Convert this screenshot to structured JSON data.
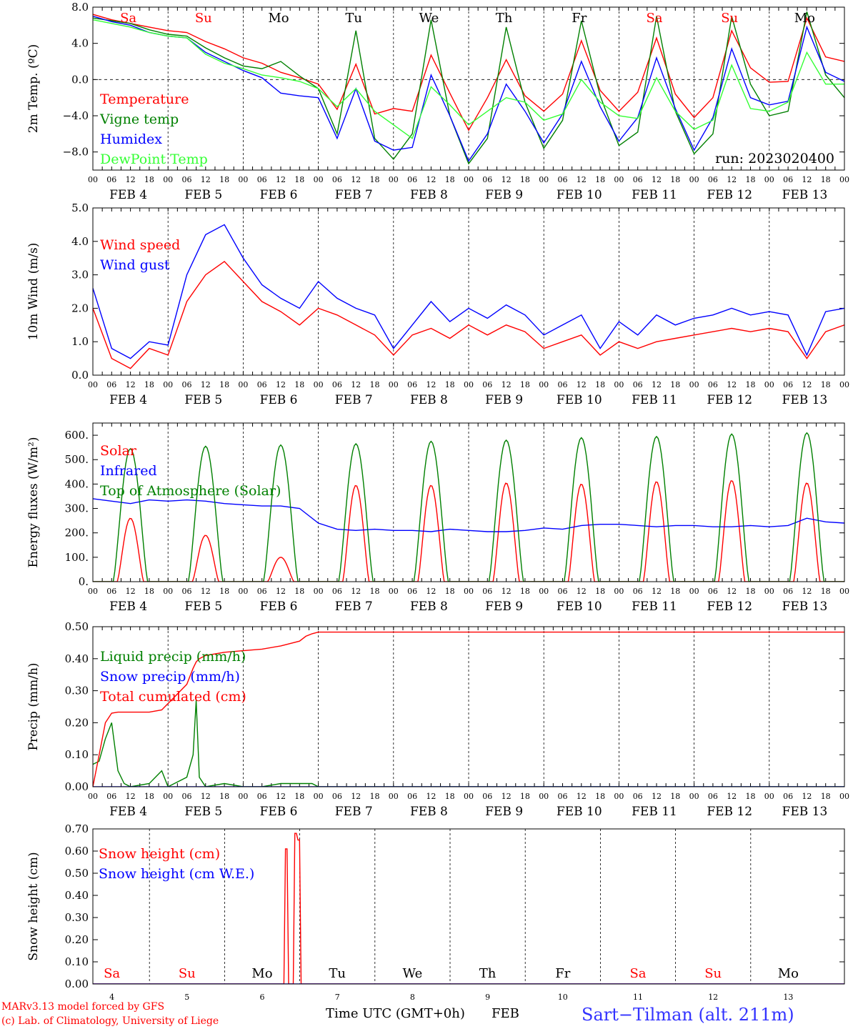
{
  "x_axis": {
    "hour_labels": [
      "00",
      "06",
      "12",
      "18"
    ],
    "final_label": "00",
    "date_labels": [
      "FEB  4",
      "FEB  5",
      "FEB  6",
      "FEB  7",
      "FEB  8",
      "FEB  9",
      "FEB 10",
      "FEB 11",
      "FEB 12",
      "FEB 13"
    ],
    "day_numbers": [
      "4",
      "5",
      "6",
      "7",
      "8",
      "9",
      "10",
      "11",
      "12",
      "13"
    ],
    "weekdays": [
      "Sa",
      "Su",
      "Mo",
      "Tu",
      "We",
      "Th",
      "Fr",
      "Sa",
      "Su",
      "Mo"
    ],
    "weekday_colors": [
      "#ff0000",
      "#ff0000",
      "#000000",
      "#000000",
      "#000000",
      "#000000",
      "#000000",
      "#ff0000",
      "#ff0000",
      "#000000"
    ],
    "title": "Time UTC (GMT+0h)",
    "month": "FEB"
  },
  "footer": {
    "credit_line1": "MARv3.13 model forced by GFS",
    "credit_line2": "(c) Lab. of Climatology, University of Liege",
    "station": "Sart−Tilman (alt. 211m)",
    "credit_color": "#ff0000",
    "station_color": "#3333ff"
  },
  "chart_data": [
    {
      "type": "line",
      "ylabel": "2m Temp. (ºC)",
      "ylim": [
        -10,
        8
      ],
      "yticks": [
        8,
        4,
        0,
        -4,
        -8
      ],
      "ytick_labels": [
        "8.0",
        "4.0",
        "0.0",
        "−4.0",
        "−8.0"
      ],
      "zero_line": true,
      "annotation": "run: 2023020400",
      "series": [
        {
          "name": "Temperature",
          "color": "#ff0000",
          "x": [
            0,
            6,
            12,
            18,
            24,
            30,
            36,
            42,
            48,
            54,
            60,
            66,
            72,
            78,
            84,
            90,
            96,
            102,
            108,
            114,
            120,
            126,
            132,
            138,
            144,
            150,
            156,
            162,
            168,
            174,
            180,
            186,
            192,
            198,
            204,
            210,
            216,
            222,
            228,
            234,
            240
          ],
          "y": [
            7.2,
            6.6,
            6.2,
            5.8,
            5.4,
            5.2,
            4.2,
            3.4,
            2.4,
            1.8,
            0.8,
            0.2,
            -0.5,
            -3.3,
            1.7,
            -3.8,
            -3.2,
            -3.5,
            2.7,
            -1.5,
            -5.6,
            -2.0,
            2.2,
            -1.8,
            -3.5,
            -1.6,
            4.3,
            -1.2,
            -3.5,
            -1.4,
            4.6,
            -1.6,
            -4.2,
            -2.0,
            5.4,
            1.3,
            -0.3,
            -0.2,
            6.8,
            2.5,
            2.0
          ]
        },
        {
          "name": "Vigne temp",
          "color": "#008000",
          "x": [
            0,
            6,
            12,
            18,
            24,
            30,
            36,
            42,
            48,
            54,
            60,
            66,
            72,
            78,
            84,
            90,
            96,
            102,
            108,
            114,
            120,
            126,
            132,
            138,
            144,
            150,
            156,
            162,
            168,
            174,
            180,
            186,
            192,
            198,
            204,
            210,
            216,
            222,
            228,
            234,
            240
          ],
          "y": [
            6.8,
            6.5,
            6.2,
            5.5,
            5.0,
            4.8,
            3.5,
            2.4,
            1.5,
            1.2,
            2.0,
            0.4,
            -1.0,
            -6.0,
            5.4,
            -6.5,
            -8.8,
            -6.0,
            6.6,
            -4.0,
            -9.3,
            -6.5,
            5.8,
            -2.5,
            -7.6,
            -4.5,
            6.5,
            -1.8,
            -7.3,
            -5.8,
            7.0,
            -3.5,
            -8.2,
            -6.0,
            7.0,
            -0.5,
            -4.0,
            -3.5,
            7.5,
            0.5,
            -2.0
          ]
        },
        {
          "name": "Humidex",
          "color": "#0000ff",
          "x": [
            0,
            6,
            12,
            18,
            24,
            30,
            36,
            42,
            48,
            54,
            60,
            66,
            72,
            78,
            84,
            90,
            96,
            102,
            108,
            114,
            120,
            126,
            132,
            138,
            144,
            150,
            156,
            162,
            168,
            174,
            180,
            186,
            192,
            198,
            204,
            210,
            216,
            222,
            228,
            234,
            240
          ],
          "y": [
            7.0,
            6.4,
            6.0,
            5.2,
            4.8,
            4.6,
            3.0,
            2.0,
            1.0,
            0.2,
            -1.5,
            -1.8,
            -2.0,
            -6.5,
            -1.0,
            -6.8,
            -7.8,
            -7.5,
            0.5,
            -4.0,
            -9.0,
            -6.0,
            -0.5,
            -3.5,
            -7.0,
            -3.8,
            2.0,
            -3.0,
            -6.8,
            -4.2,
            2.4,
            -3.2,
            -7.8,
            -4.2,
            3.4,
            -2.0,
            -2.8,
            -2.4,
            5.8,
            0.8,
            -0.2
          ]
        },
        {
          "name": "DewPoint Temp",
          "color": "#33ff33",
          "x": [
            0,
            6,
            12,
            18,
            24,
            30,
            36,
            42,
            48,
            54,
            60,
            66,
            72,
            78,
            84,
            90,
            96,
            102,
            108,
            114,
            120,
            126,
            132,
            138,
            144,
            150,
            156,
            162,
            168,
            174,
            180,
            186,
            192,
            198,
            204,
            210,
            216,
            222,
            228,
            234,
            240
          ],
          "y": [
            6.6,
            6.2,
            5.8,
            5.2,
            4.8,
            4.6,
            2.8,
            1.8,
            1.2,
            0.5,
            0.2,
            -0.2,
            -1.0,
            -3.0,
            -1.0,
            -3.5,
            -5.0,
            -6.5,
            -0.8,
            -2.8,
            -5.0,
            -3.5,
            -2.0,
            -2.5,
            -4.5,
            -3.8,
            0.0,
            -2.5,
            -4.0,
            -4.3,
            0.2,
            -3.5,
            -5.5,
            -4.5,
            1.6,
            -3.2,
            -3.5,
            -2.5,
            3.0,
            -0.5,
            -0.5
          ]
        }
      ]
    },
    {
      "type": "line",
      "ylabel": "10m Wind (m/s)",
      "ylim": [
        0,
        5
      ],
      "yticks": [
        0,
        1,
        2,
        3,
        4,
        5
      ],
      "ytick_labels": [
        "0.0",
        "1.0",
        "2.0",
        "3.0",
        "4.0",
        "5.0"
      ],
      "series": [
        {
          "name": "Wind speed",
          "color": "#ff0000",
          "x": [
            0,
            6,
            12,
            18,
            24,
            30,
            36,
            42,
            48,
            54,
            60,
            66,
            72,
            78,
            84,
            90,
            96,
            102,
            108,
            114,
            120,
            126,
            132,
            138,
            144,
            150,
            156,
            162,
            168,
            174,
            180,
            186,
            192,
            198,
            204,
            210,
            216,
            222,
            228,
            234,
            240
          ],
          "y": [
            2.0,
            0.5,
            0.2,
            0.8,
            0.6,
            2.2,
            3.0,
            3.4,
            2.8,
            2.2,
            1.9,
            1.5,
            2.0,
            1.8,
            1.5,
            1.2,
            0.6,
            1.2,
            1.4,
            1.1,
            1.5,
            1.2,
            1.5,
            1.3,
            0.8,
            1.0,
            1.2,
            0.6,
            1.0,
            0.8,
            1.0,
            1.1,
            1.2,
            1.3,
            1.4,
            1.3,
            1.4,
            1.3,
            0.5,
            1.3,
            1.5
          ]
        },
        {
          "name": "Wind gust",
          "color": "#0000ff",
          "x": [
            0,
            6,
            12,
            18,
            24,
            30,
            36,
            42,
            48,
            54,
            60,
            66,
            72,
            78,
            84,
            90,
            96,
            102,
            108,
            114,
            120,
            126,
            132,
            138,
            144,
            150,
            156,
            162,
            168,
            174,
            180,
            186,
            192,
            198,
            204,
            210,
            216,
            222,
            228,
            234,
            240
          ],
          "y": [
            2.6,
            0.8,
            0.5,
            1.0,
            0.9,
            3.0,
            4.2,
            4.5,
            3.5,
            2.7,
            2.3,
            2.0,
            2.8,
            2.3,
            2.0,
            1.8,
            0.8,
            1.5,
            2.2,
            1.6,
            2.0,
            1.7,
            2.1,
            1.8,
            1.2,
            1.5,
            1.8,
            0.8,
            1.6,
            1.2,
            1.8,
            1.5,
            1.7,
            1.8,
            2.0,
            1.8,
            1.9,
            1.8,
            0.6,
            1.9,
            2.0
          ]
        }
      ]
    },
    {
      "type": "line",
      "ylabel": "Energy fluxes (W/m²)",
      "ylim": [
        0,
        650
      ],
      "yticks": [
        0,
        100,
        200,
        300,
        400,
        500,
        600
      ],
      "ytick_labels": [
        "0.",
        "100.",
        "200.",
        "300.",
        "400.",
        "500.",
        "600."
      ],
      "series": [
        {
          "name": "Solar",
          "color": "#ff0000",
          "diurnal_peaks_w_m2": [
            260,
            190,
            100,
            395,
            395,
            405,
            400,
            410,
            415,
            405
          ]
        },
        {
          "name": "Infrared",
          "color": "#0000ff",
          "x": [
            0,
            6,
            12,
            18,
            24,
            30,
            36,
            42,
            48,
            54,
            60,
            66,
            72,
            78,
            84,
            90,
            96,
            102,
            108,
            114,
            120,
            126,
            132,
            138,
            144,
            150,
            156,
            162,
            168,
            174,
            180,
            186,
            192,
            198,
            204,
            210,
            216,
            222,
            228,
            234,
            240
          ],
          "y": [
            340,
            330,
            320,
            335,
            330,
            335,
            330,
            320,
            315,
            310,
            310,
            300,
            240,
            215,
            210,
            215,
            210,
            210,
            205,
            215,
            210,
            205,
            205,
            210,
            220,
            215,
            230,
            235,
            235,
            230,
            225,
            230,
            230,
            225,
            225,
            230,
            225,
            230,
            260,
            245,
            240
          ]
        },
        {
          "name": "Top of Atmosphere (Solar)",
          "color": "#008000",
          "diurnal_peaks_w_m2": [
            545,
            555,
            560,
            565,
            575,
            580,
            590,
            595,
            605,
            610
          ]
        }
      ]
    },
    {
      "type": "line",
      "ylabel": "Precip (mm/h)",
      "ylim": [
        0,
        0.5
      ],
      "yticks": [
        0,
        0.1,
        0.2,
        0.3,
        0.4,
        0.5
      ],
      "ytick_labels": [
        "0.00",
        "0.10",
        "0.20",
        "0.30",
        "0.40",
        "0.50"
      ],
      "series": [
        {
          "name": "Liquid precip (mm/h)",
          "color": "#008000",
          "x": [
            0,
            2,
            4,
            6,
            8,
            10,
            12,
            18,
            22,
            24,
            26,
            30,
            32,
            33,
            34,
            36,
            42,
            48,
            54,
            60,
            66,
            70,
            72,
            78,
            84,
            90,
            240
          ],
          "y": [
            0.07,
            0.08,
            0.15,
            0.2,
            0.05,
            0.01,
            0.0,
            0.01,
            0.05,
            0.0,
            0.01,
            0.03,
            0.1,
            0.27,
            0.03,
            0.0,
            0.01,
            0.0,
            0.0,
            0.01,
            0.01,
            0.01,
            0.0,
            0.0,
            0.0,
            0.0,
            0.0
          ]
        },
        {
          "name": "Snow precip (mm/h)",
          "color": "#0000ff",
          "x": [
            0,
            240
          ],
          "y": [
            0.0,
            0.0
          ]
        },
        {
          "name": "Total cumulated (cm)",
          "color": "#ff0000",
          "x": [
            0,
            2,
            4,
            6,
            8,
            12,
            18,
            22,
            24,
            26,
            30,
            32,
            33,
            34,
            36,
            42,
            48,
            54,
            60,
            66,
            68,
            70,
            72,
            78,
            84,
            96,
            120,
            144,
            168,
            192,
            216,
            240
          ],
          "y": [
            0.0,
            0.1,
            0.2,
            0.23,
            0.233,
            0.233,
            0.233,
            0.24,
            0.26,
            0.28,
            0.32,
            0.37,
            0.39,
            0.4,
            0.41,
            0.42,
            0.425,
            0.43,
            0.44,
            0.455,
            0.47,
            0.478,
            0.483,
            0.483,
            0.483,
            0.483,
            0.483,
            0.483,
            0.483,
            0.483,
            0.483,
            0.483
          ]
        }
      ]
    },
    {
      "type": "line",
      "ylabel": "Snow height (cm)",
      "ylim": [
        0,
        0.7
      ],
      "yticks": [
        0,
        0.1,
        0.2,
        0.3,
        0.4,
        0.5,
        0.6,
        0.7
      ],
      "ytick_labels": [
        "0.00",
        "0.10",
        "0.20",
        "0.30",
        "0.40",
        "0.50",
        "0.60",
        "0.70"
      ],
      "series": [
        {
          "name": "Snow height (cm)",
          "color": "#ff0000",
          "x": [
            0,
            61,
            61.5,
            62,
            62.5,
            64,
            64.5,
            65,
            65.5,
            66,
            66.5,
            240
          ],
          "y": [
            0,
            0,
            0.61,
            0.61,
            0,
            0,
            0.68,
            0.68,
            0.65,
            0.65,
            0,
            0
          ]
        },
        {
          "name": "Snow height (cm W.E.)",
          "color": "#0000ff",
          "x": [
            0,
            240
          ],
          "y": [
            0,
            0
          ]
        }
      ]
    }
  ]
}
